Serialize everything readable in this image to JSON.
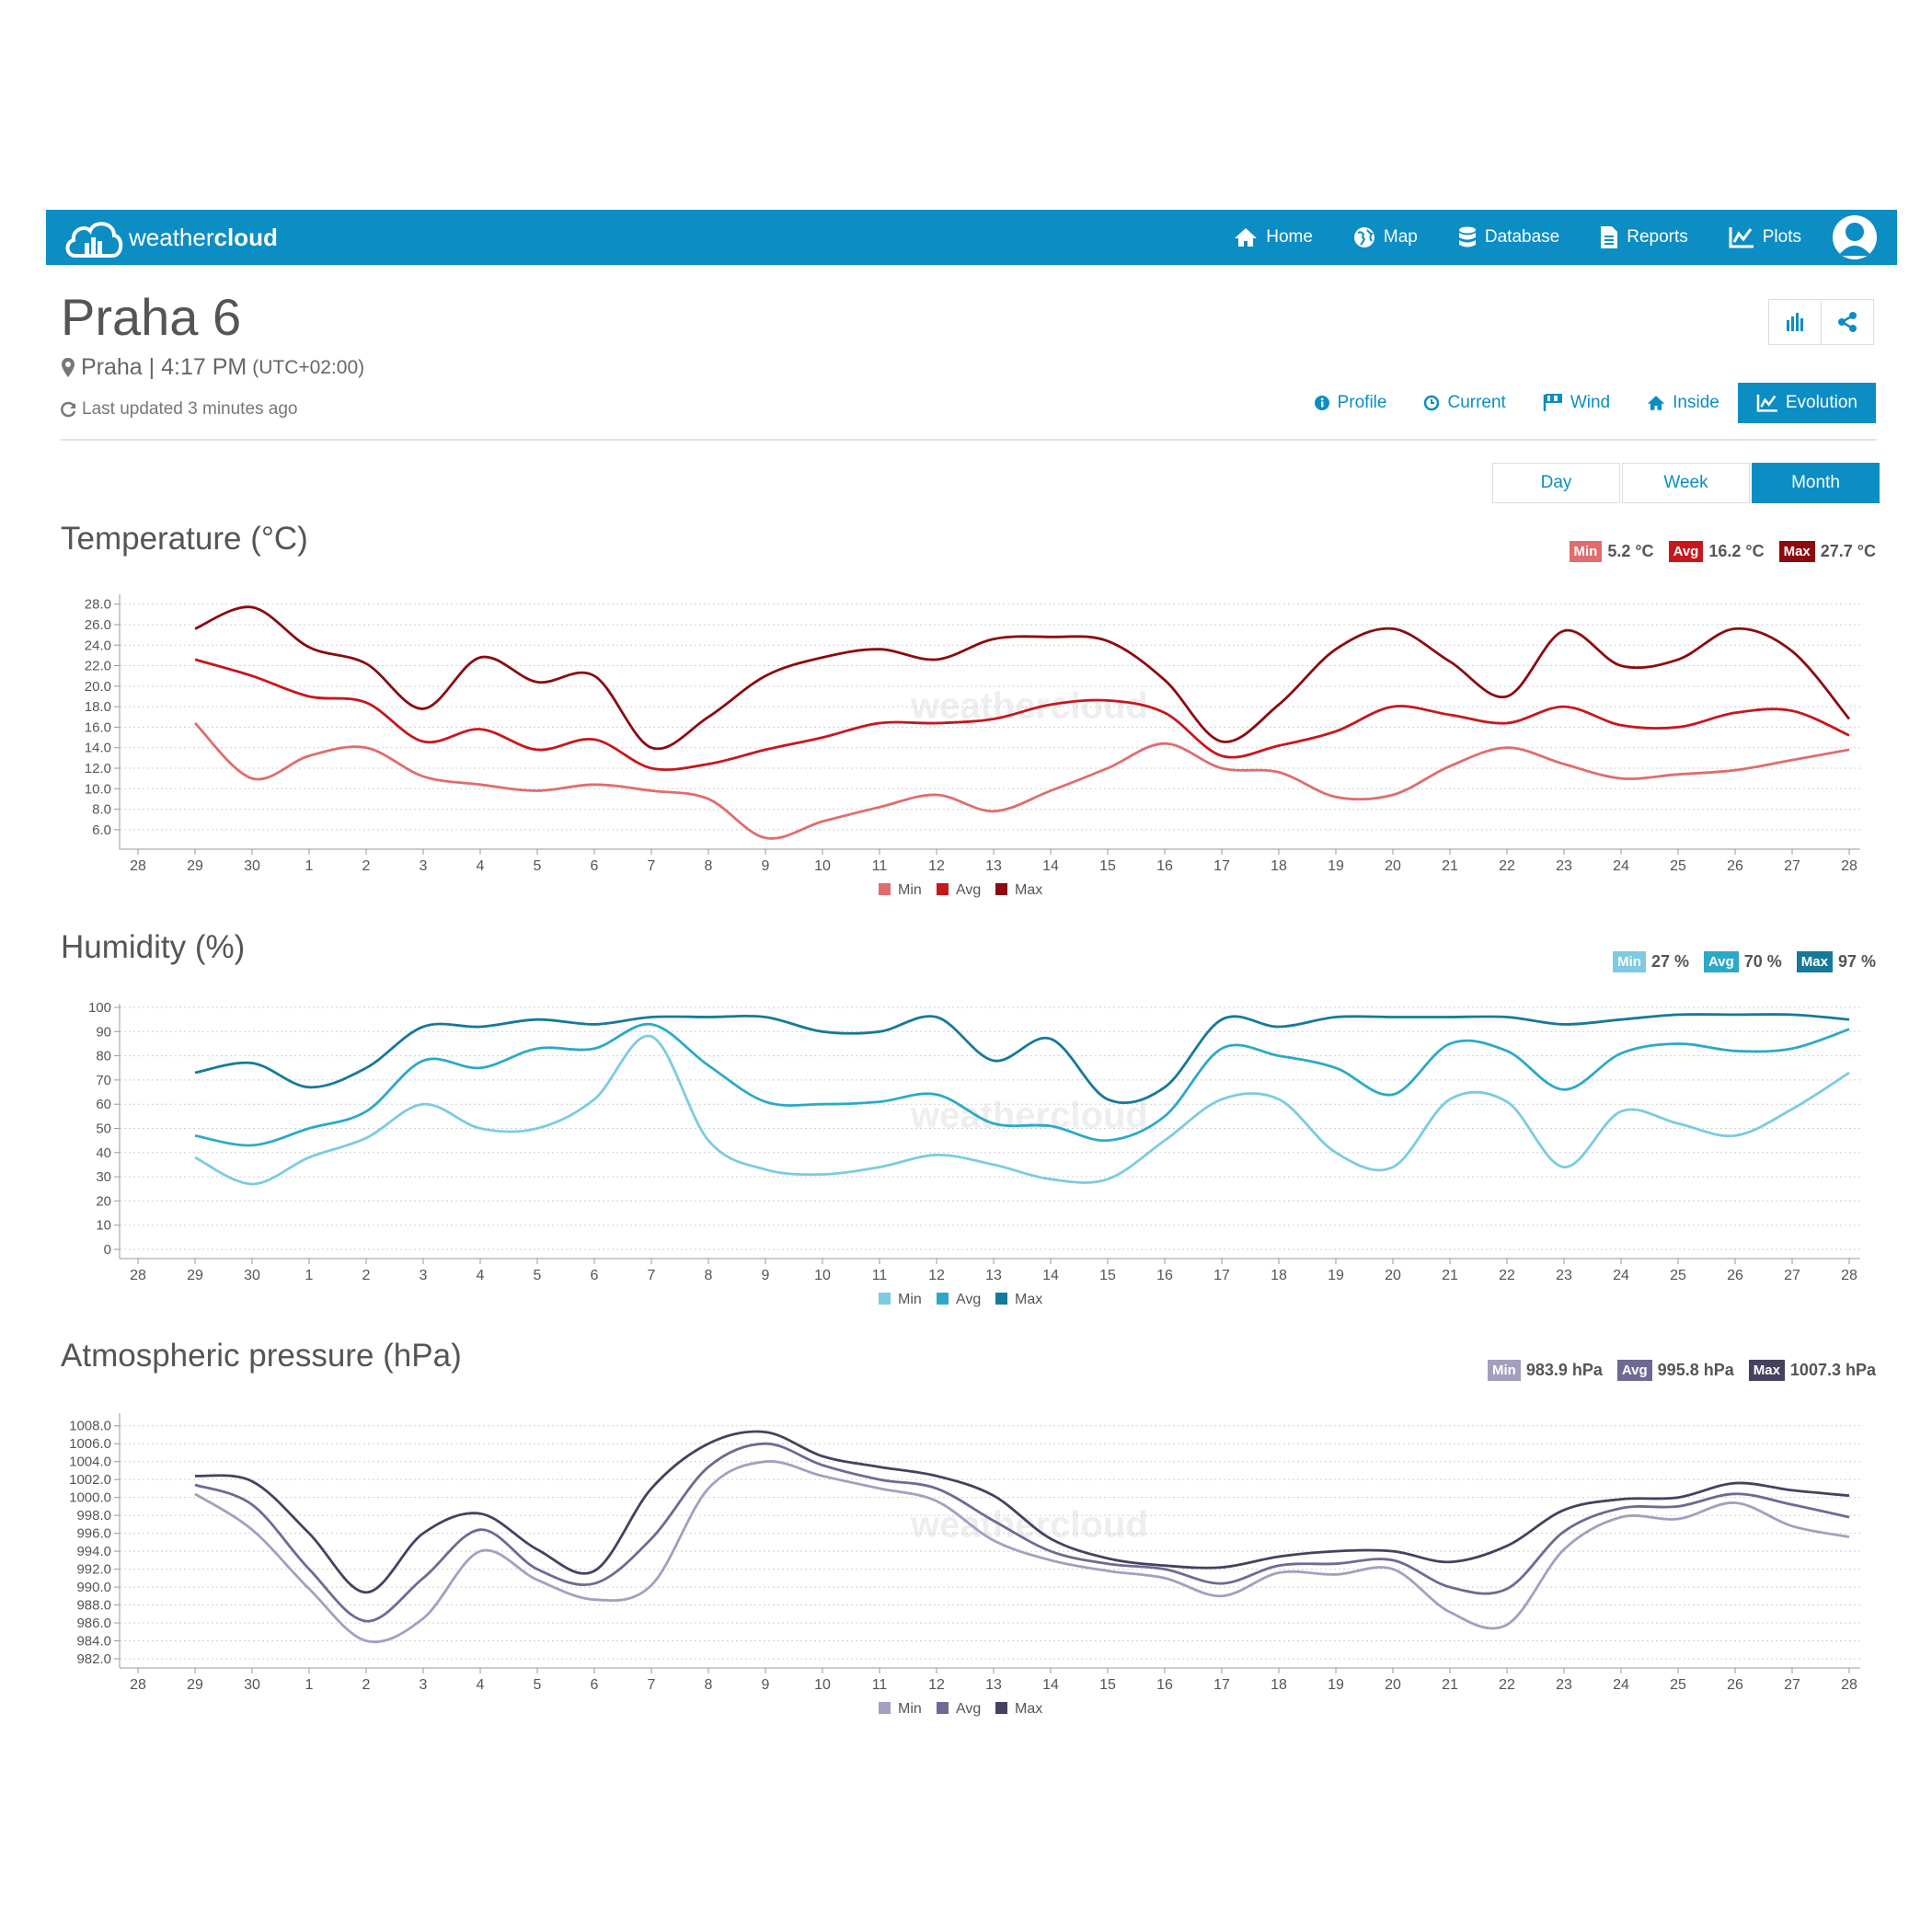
{
  "app": {
    "brand_light": "weather",
    "brand_bold": "cloud",
    "nav": [
      {
        "label": "Home",
        "icon": "home-icon"
      },
      {
        "label": "Map",
        "icon": "globe-icon"
      },
      {
        "label": "Database",
        "icon": "database-icon"
      },
      {
        "label": "Reports",
        "icon": "document-icon"
      },
      {
        "label": "Plots",
        "icon": "line-chart-icon"
      }
    ]
  },
  "station": {
    "name": "Praha 6",
    "location": "Praha | 4:17 PM",
    "timezone": "(UTC+02:00)",
    "updated": "Last updated 3 minutes ago"
  },
  "tabs": [
    {
      "label": "Profile",
      "icon": "info-icon"
    },
    {
      "label": "Current",
      "icon": "clock-icon"
    },
    {
      "label": "Wind",
      "icon": "flag-icon"
    },
    {
      "label": "Inside",
      "icon": "home-icon"
    },
    {
      "label": "Evolution",
      "icon": "line-chart-icon",
      "active": true
    }
  ],
  "periods": [
    {
      "label": "Day"
    },
    {
      "label": "Week"
    },
    {
      "label": "Month",
      "active": true
    }
  ],
  "watermark": "weathercloud",
  "colors": {
    "brand": "#0c8dc4",
    "temp": [
      "#e06c6e",
      "#c8161d",
      "#8b0b10"
    ],
    "hum": [
      "#7ccbe0",
      "#2ca9c9",
      "#16799a"
    ],
    "pres": [
      "#a39fbf",
      "#6d6a94",
      "#45425f"
    ]
  },
  "chart_data": [
    {
      "type": "line",
      "title": "Temperature (°C)",
      "ylim": [
        5,
        28.6
      ],
      "yticks": [
        "28.0",
        "26.0",
        "24.0",
        "22.0",
        "20.0",
        "18.0",
        "16.0",
        "14.0",
        "12.0",
        "10.0",
        "8.0",
        "6.0"
      ],
      "categories": [
        "28",
        "29",
        "30",
        "1",
        "2",
        "3",
        "4",
        "5",
        "6",
        "7",
        "8",
        "9",
        "10",
        "11",
        "12",
        "13",
        "14",
        "15",
        "16",
        "17",
        "18",
        "19",
        "20",
        "21",
        "22",
        "23",
        "24",
        "25",
        "26",
        "27",
        "28"
      ],
      "summary": [
        {
          "label": "Min",
          "value": "5.2 °C"
        },
        {
          "label": "Avg",
          "value": "16.2 °C"
        },
        {
          "label": "Max",
          "value": "27.7 °C"
        }
      ],
      "series": [
        {
          "name": "Min",
          "values": [
            null,
            16.4,
            11.0,
            13.2,
            14.0,
            11.2,
            10.4,
            9.8,
            10.4,
            9.8,
            9.0,
            5.2,
            6.8,
            8.2,
            9.4,
            7.8,
            9.8,
            12.0,
            14.4,
            12.0,
            11.6,
            9.2,
            9.4,
            12.2,
            14.0,
            12.4,
            11.0,
            11.4,
            11.8,
            12.8,
            13.8
          ]
        },
        {
          "name": "Avg",
          "values": [
            null,
            22.6,
            21.0,
            19.0,
            18.4,
            14.6,
            15.8,
            13.8,
            14.8,
            12.0,
            12.4,
            13.8,
            15.0,
            16.4,
            16.4,
            16.8,
            18.2,
            18.6,
            17.4,
            13.2,
            14.2,
            15.6,
            18.0,
            17.2,
            16.4,
            18.0,
            16.2,
            16.0,
            17.4,
            17.6,
            15.2
          ]
        },
        {
          "name": "Max",
          "values": [
            null,
            25.6,
            27.7,
            23.8,
            22.2,
            17.8,
            22.8,
            20.4,
            21.0,
            14.0,
            17.0,
            21.0,
            22.8,
            23.6,
            22.6,
            24.6,
            24.8,
            24.4,
            20.6,
            14.6,
            18.2,
            23.6,
            25.6,
            22.4,
            19.0,
            25.4,
            22.0,
            22.6,
            25.6,
            23.4,
            16.8
          ]
        }
      ]
    },
    {
      "type": "line",
      "title": "Humidity (%)",
      "ylim": [
        0,
        100
      ],
      "yticks": [
        "100",
        "90",
        "80",
        "70",
        "60",
        "50",
        "40",
        "30",
        "20",
        "10",
        "0"
      ],
      "categories": [
        "28",
        "29",
        "30",
        "1",
        "2",
        "3",
        "4",
        "5",
        "6",
        "7",
        "8",
        "9",
        "10",
        "11",
        "12",
        "13",
        "14",
        "15",
        "16",
        "17",
        "18",
        "19",
        "20",
        "21",
        "22",
        "23",
        "24",
        "25",
        "26",
        "27",
        "28"
      ],
      "summary": [
        {
          "label": "Min",
          "value": "27 %"
        },
        {
          "label": "Avg",
          "value": "70 %"
        },
        {
          "label": "Max",
          "value": "97 %"
        }
      ],
      "series": [
        {
          "name": "Min",
          "values": [
            null,
            38,
            27,
            38,
            46,
            60,
            50,
            50,
            62,
            88,
            45,
            33,
            31,
            34,
            39,
            35,
            29,
            29,
            45,
            62,
            62,
            40,
            34,
            62,
            61,
            34,
            57,
            52,
            47,
            58,
            73
          ]
        },
        {
          "name": "Avg",
          "values": [
            null,
            47,
            43,
            50,
            57,
            78,
            75,
            83,
            83,
            93,
            76,
            61,
            60,
            61,
            64,
            52,
            51,
            45,
            55,
            83,
            80,
            75,
            64,
            85,
            82,
            66,
            81,
            85,
            82,
            83,
            91
          ]
        },
        {
          "name": "Max",
          "values": [
            null,
            73,
            77,
            67,
            75,
            92,
            92,
            95,
            93,
            96,
            96,
            96,
            90,
            90,
            96,
            78,
            87,
            62,
            67,
            95,
            92,
            96,
            96,
            96,
            96,
            93,
            95,
            97,
            97,
            97,
            95
          ]
        }
      ]
    },
    {
      "type": "line",
      "title": "Atmospheric pressure (hPa)",
      "ylim": [
        982,
        1009
      ],
      "yticks": [
        "1008.0",
        "1006.0",
        "1004.0",
        "1002.0",
        "1000.0",
        "998.0",
        "996.0",
        "994.0",
        "992.0",
        "990.0",
        "988.0",
        "986.0",
        "984.0",
        "982.0"
      ],
      "categories": [
        "28",
        "29",
        "30",
        "1",
        "2",
        "3",
        "4",
        "5",
        "6",
        "7",
        "8",
        "9",
        "10",
        "11",
        "12",
        "13",
        "14",
        "15",
        "16",
        "17",
        "18",
        "19",
        "20",
        "21",
        "22",
        "23",
        "24",
        "25",
        "26",
        "27",
        "28"
      ],
      "summary": [
        {
          "label": "Min",
          "value": "983.9 hPa"
        },
        {
          "label": "Avg",
          "value": "995.8 hPa"
        },
        {
          "label": "Max",
          "value": "1007.3 hPa"
        }
      ],
      "series": [
        {
          "name": "Min",
          "values": [
            null,
            1000.4,
            996.4,
            989.8,
            984.0,
            986.5,
            994.0,
            990.8,
            988.6,
            990.2,
            1001.0,
            1004.0,
            1002.4,
            1001.0,
            999.6,
            995.2,
            993.0,
            991.8,
            991.0,
            989.0,
            991.6,
            991.4,
            992.0,
            987.2,
            985.8,
            994.2,
            997.8,
            997.6,
            999.4,
            996.8,
            995.6
          ]
        },
        {
          "name": "Avg",
          "values": [
            null,
            1001.4,
            999.2,
            992.0,
            986.2,
            991.0,
            996.4,
            992.0,
            990.4,
            995.4,
            1003.4,
            1006.0,
            1003.6,
            1002.0,
            1001.0,
            997.4,
            994.0,
            992.6,
            992.0,
            990.4,
            992.4,
            992.6,
            993.0,
            990.0,
            989.8,
            996.2,
            998.8,
            999.0,
            1000.4,
            999.2,
            997.8
          ]
        },
        {
          "name": "Max",
          "values": [
            null,
            1002.4,
            1001.8,
            996.0,
            989.4,
            996.0,
            998.2,
            994.2,
            991.8,
            1001.0,
            1006.0,
            1007.3,
            1004.6,
            1003.4,
            1002.4,
            1000.2,
            995.4,
            993.2,
            992.4,
            992.2,
            993.4,
            994.0,
            994.0,
            992.8,
            994.6,
            998.6,
            999.8,
            1000.0,
            1001.6,
            1000.8,
            1000.2
          ]
        }
      ]
    }
  ]
}
